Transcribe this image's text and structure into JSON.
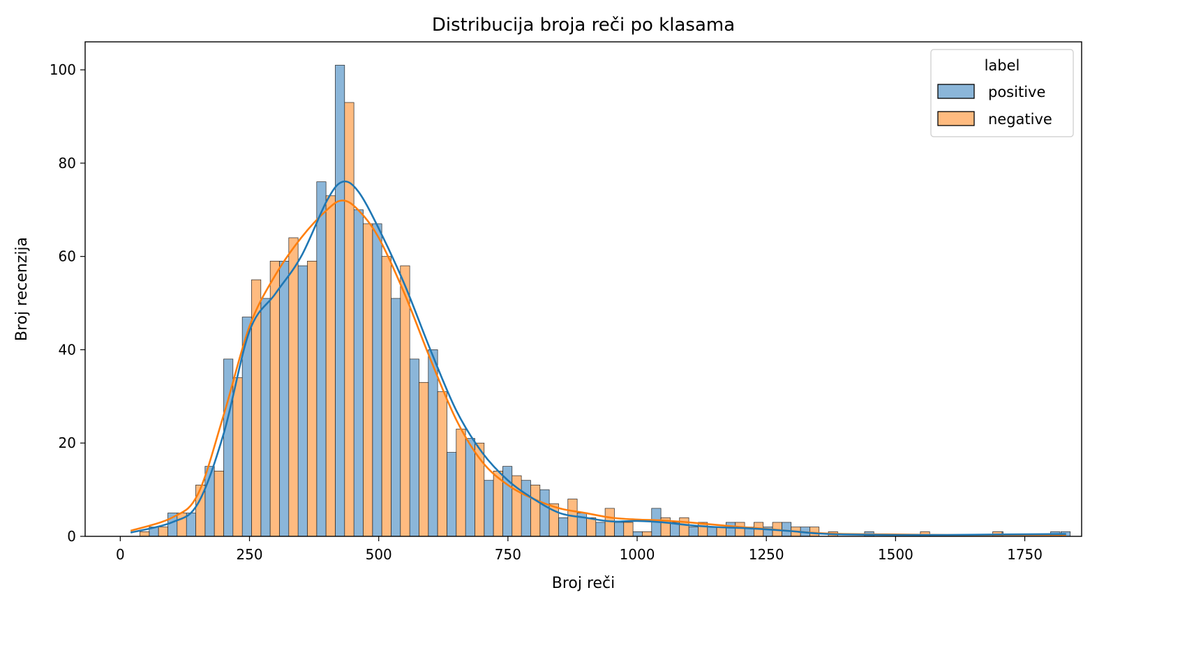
{
  "chart_data": {
    "type": "bar",
    "title": "Distribucija broja reči po klasama",
    "xlabel": "Broj reči",
    "ylabel": "Broj recenzija",
    "xlim": [
      -68,
      1860
    ],
    "ylim": [
      0,
      106
    ],
    "xticks": [
      0,
      250,
      500,
      750,
      1000,
      1250,
      1500,
      1750
    ],
    "yticks": [
      0,
      20,
      40,
      60,
      80,
      100
    ],
    "grid": false,
    "legend": {
      "title": "label",
      "placement": "top-right"
    },
    "bin_width": 36,
    "bin_start": 20,
    "series": [
      {
        "name": "positive",
        "color": "#1f77b4",
        "fill": "#8bb6d9",
        "values": [
          0,
          2,
          5,
          5,
          15,
          38,
          47,
          51,
          59,
          58,
          76,
          101,
          70,
          67,
          51,
          38,
          40,
          18,
          21,
          12,
          15,
          12,
          10,
          4,
          5,
          3,
          3,
          1,
          6,
          3,
          2,
          2,
          3,
          2,
          2,
          3,
          2,
          0,
          0,
          0,
          0,
          0,
          0,
          0,
          0,
          0,
          0,
          0,
          0,
          0,
          0,
          0,
          0,
          0,
          0,
          0,
          0,
          0,
          0,
          0,
          0,
          0,
          0,
          0,
          0,
          0,
          0,
          0,
          0,
          0,
          0,
          0,
          0,
          0,
          0,
          0,
          0,
          0,
          0,
          0,
          0
        ],
        "sparse_values": [
          [
            1440,
            1
          ],
          [
            1690,
            1
          ],
          [
            1800,
            1
          ],
          [
            1820,
            1
          ]
        ]
      },
      {
        "name": "negative",
        "color": "#ff7f0e",
        "fill": "#ffbb80",
        "values": [
          1,
          2,
          5,
          11,
          14,
          34,
          55,
          59,
          64,
          59,
          73,
          93,
          67,
          60,
          58,
          33,
          31,
          23,
          20,
          14,
          13,
          11,
          7,
          8,
          4,
          6,
          3,
          1,
          4,
          4,
          3,
          2,
          3,
          3,
          3,
          2,
          2,
          1,
          0,
          0,
          0,
          0,
          0,
          0,
          0,
          0,
          0,
          0,
          0,
          0,
          0,
          0,
          0,
          0,
          0,
          0,
          0,
          0,
          0,
          0,
          0,
          0,
          0,
          0,
          0,
          0,
          0,
          0,
          0,
          0,
          0,
          0,
          0,
          0,
          0,
          0,
          0,
          0,
          0,
          0,
          0
        ],
        "sparse_values": [
          [
            1530,
            1
          ],
          [
            1670,
            1
          ]
        ]
      }
    ],
    "kde": [
      {
        "name": "positive",
        "points": [
          [
            20,
            0.8
          ],
          [
            100,
            3
          ],
          [
            150,
            7
          ],
          [
            200,
            22
          ],
          [
            250,
            44
          ],
          [
            300,
            52
          ],
          [
            350,
            60
          ],
          [
            400,
            72
          ],
          [
            430,
            76
          ],
          [
            460,
            74
          ],
          [
            500,
            66
          ],
          [
            550,
            54
          ],
          [
            600,
            40
          ],
          [
            650,
            27
          ],
          [
            700,
            18
          ],
          [
            750,
            12
          ],
          [
            800,
            8
          ],
          [
            850,
            5
          ],
          [
            900,
            4
          ],
          [
            950,
            3.2
          ],
          [
            1000,
            3.3
          ],
          [
            1050,
            3
          ],
          [
            1100,
            2.4
          ],
          [
            1150,
            2
          ],
          [
            1200,
            1.8
          ],
          [
            1250,
            1.5
          ],
          [
            1300,
            1.1
          ],
          [
            1350,
            0.6
          ],
          [
            1400,
            0.4
          ],
          [
            1500,
            0.3
          ],
          [
            1600,
            0.3
          ],
          [
            1700,
            0.4
          ],
          [
            1830,
            0.5
          ]
        ]
      },
      {
        "name": "negative",
        "points": [
          [
            20,
            1.2
          ],
          [
            100,
            4
          ],
          [
            150,
            9
          ],
          [
            200,
            26
          ],
          [
            250,
            45
          ],
          [
            300,
            56
          ],
          [
            350,
            64
          ],
          [
            400,
            70
          ],
          [
            430,
            72
          ],
          [
            460,
            70
          ],
          [
            500,
            64
          ],
          [
            550,
            52
          ],
          [
            600,
            38
          ],
          [
            650,
            25
          ],
          [
            700,
            16
          ],
          [
            750,
            11
          ],
          [
            800,
            8
          ],
          [
            850,
            6
          ],
          [
            900,
            5
          ],
          [
            950,
            4
          ],
          [
            1000,
            3.6
          ],
          [
            1050,
            3.4
          ],
          [
            1100,
            3
          ],
          [
            1150,
            2.5
          ],
          [
            1200,
            2
          ],
          [
            1250,
            1.6
          ],
          [
            1300,
            1.1
          ],
          [
            1350,
            0.7
          ],
          [
            1400,
            0.5
          ],
          [
            1500,
            0.4
          ],
          [
            1600,
            0.3
          ],
          [
            1700,
            0.3
          ],
          [
            1830,
            0.3
          ]
        ]
      }
    ]
  }
}
